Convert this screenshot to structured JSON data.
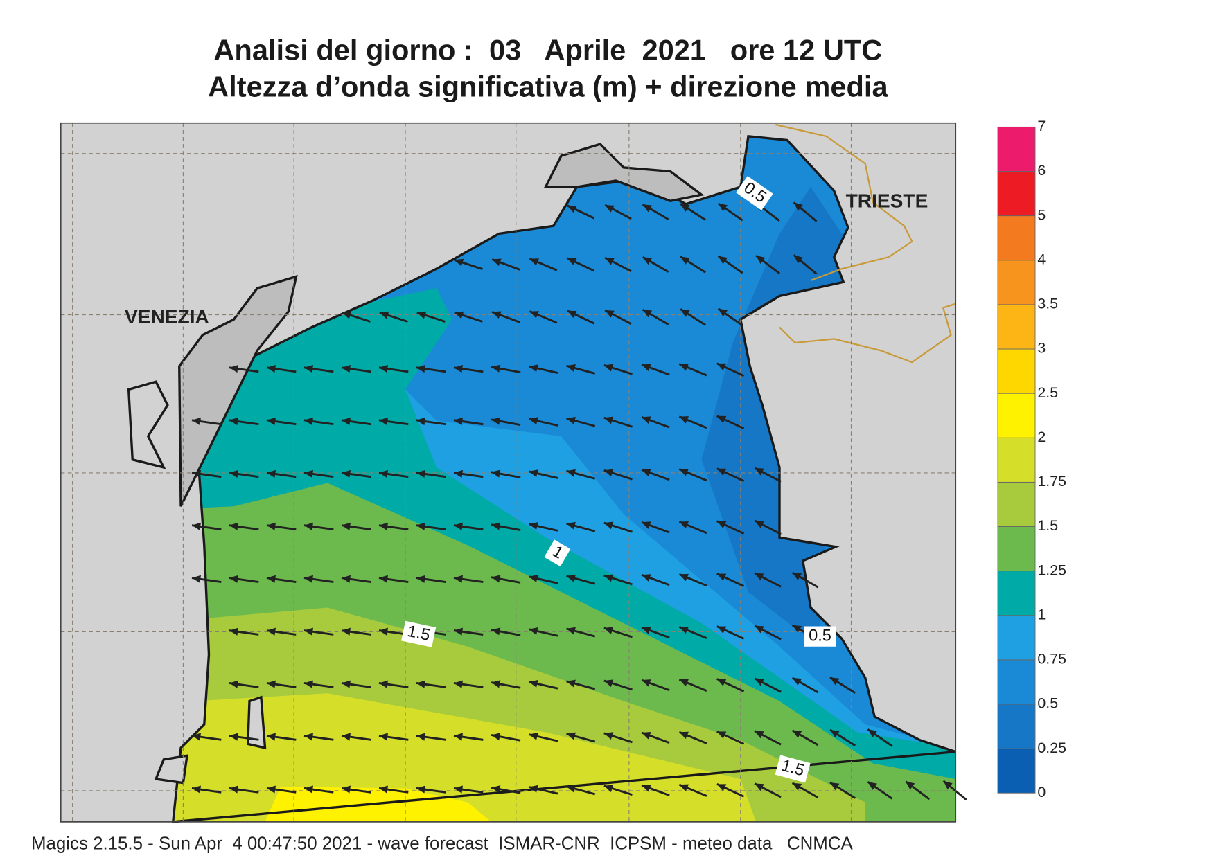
{
  "title": [
    "Analisi del giorno :  03   Aprile  2021   ore 12 UTC",
    "Altezza d’onda significativa (m) + direzione media"
  ],
  "places": [
    "VENEZIA",
    "TRIESTE"
  ],
  "contour_labels": [
    0.5,
    0.5,
    1,
    1.5,
    1.5
  ],
  "colorbar": {
    "ticks": [
      0,
      0.25,
      0.5,
      0.75,
      1,
      1.25,
      1.5,
      1.75,
      2,
      2.5,
      3,
      3.5,
      4,
      5,
      6,
      7
    ],
    "colors": [
      "#0b5fb2",
      "#1677c6",
      "#1a8ad6",
      "#1ea0e2",
      "#00aaa6",
      "#6cb94e",
      "#a7cb3c",
      "#d5df2a",
      "#fff200",
      "#ffd700",
      "#fdb515",
      "#f7941d",
      "#f47a20",
      "#ed1c24",
      "#ec1b6b"
    ]
  },
  "footer": "Magics 2.15.5 - Sun Apr  4 00:47:50 2021 - wave forecast  ISMAR-CNR  ICPSM - meteo data   CNMCA"
}
